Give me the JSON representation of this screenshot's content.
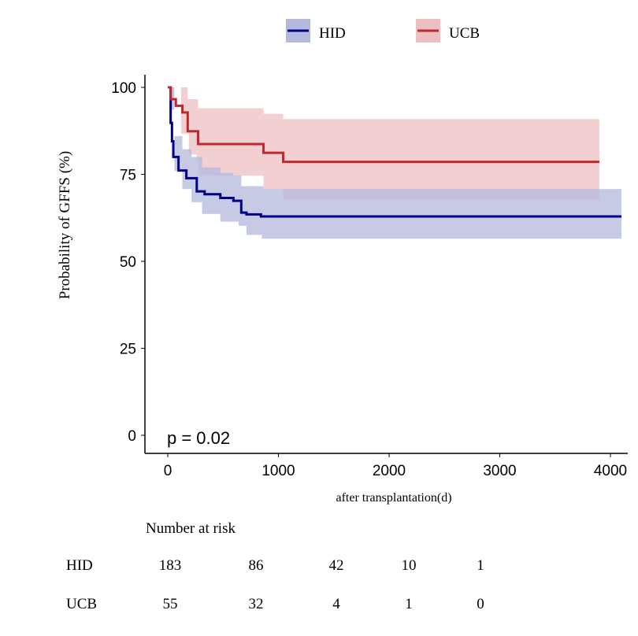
{
  "chart_data": {
    "type": "line",
    "subtype": "kaplan-meier",
    "title": "",
    "xlabel": "after transplantation(d)",
    "ylabel": "Probability of GFFS (%)",
    "xlim": [
      0,
      4100
    ],
    "ylim": [
      0,
      100
    ],
    "xticks": [
      0,
      1000,
      2000,
      3000,
      4000
    ],
    "yticks": [
      0,
      25,
      50,
      75,
      100
    ],
    "grid": false,
    "legend_position": "top",
    "annotation": "p = 0.02",
    "series": [
      {
        "name": "HID",
        "color": "#00008b",
        "ci_color": "#b3b8dc",
        "steps": [
          [
            0,
            100
          ],
          [
            26,
            89.8
          ],
          [
            38,
            84.5
          ],
          [
            50,
            80
          ],
          [
            97,
            76.1
          ],
          [
            168,
            73.9
          ],
          [
            262,
            70.1
          ],
          [
            333,
            69.3
          ],
          [
            475,
            68.2
          ],
          [
            593,
            67.4
          ],
          [
            664,
            64
          ],
          [
            711,
            63.5
          ],
          [
            842,
            62.9
          ],
          [
            4100,
            62.9
          ]
        ],
        "ci_upper": [
          [
            0,
            100
          ],
          [
            26,
            93.6
          ],
          [
            60,
            86
          ],
          [
            132,
            82.2
          ],
          [
            215,
            80
          ],
          [
            310,
            77
          ],
          [
            475,
            75.4
          ],
          [
            593,
            74.7
          ],
          [
            664,
            71.6
          ],
          [
            865,
            70.8
          ],
          [
            4100,
            70.8
          ]
        ],
        "ci_lower": [
          [
            0,
            100
          ],
          [
            60,
            76
          ],
          [
            132,
            70.8
          ],
          [
            215,
            67
          ],
          [
            310,
            63.6
          ],
          [
            475,
            61.4
          ],
          [
            640,
            60.2
          ],
          [
            711,
            57.6
          ],
          [
            850,
            56.5
          ],
          [
            4100,
            56.5
          ]
        ]
      },
      {
        "name": "UCB",
        "color": "#c0282d",
        "ci_color": "#eebfc0",
        "steps": [
          [
            0,
            100
          ],
          [
            26,
            96.6
          ],
          [
            73,
            94.7
          ],
          [
            132,
            92.8
          ],
          [
            180,
            87.4
          ],
          [
            274,
            83.7
          ],
          [
            865,
            81.2
          ],
          [
            1043,
            78.6
          ],
          [
            3900,
            78.6
          ]
        ],
        "ci_upper": [
          [
            0,
            100
          ],
          [
            180,
            96.6
          ],
          [
            274,
            94
          ],
          [
            865,
            92.4
          ],
          [
            1043,
            90.9
          ],
          [
            3900,
            90.9
          ]
        ],
        "ci_lower": [
          [
            0,
            100
          ],
          [
            120,
            86.7
          ],
          [
            190,
            80.7
          ],
          [
            260,
            79.2
          ],
          [
            280,
            74.6
          ],
          [
            865,
            70.8
          ],
          [
            1043,
            67.8
          ],
          [
            3900,
            67.8
          ]
        ]
      }
    ],
    "risk_table": {
      "title": "Number at risk",
      "rows": [
        {
          "group": "HID",
          "values": [
            "183",
            "86",
            "42",
            "10",
            "1"
          ]
        },
        {
          "group": "UCB",
          "values": [
            "55",
            "32",
            "4",
            "1",
            "0"
          ]
        }
      ]
    }
  }
}
